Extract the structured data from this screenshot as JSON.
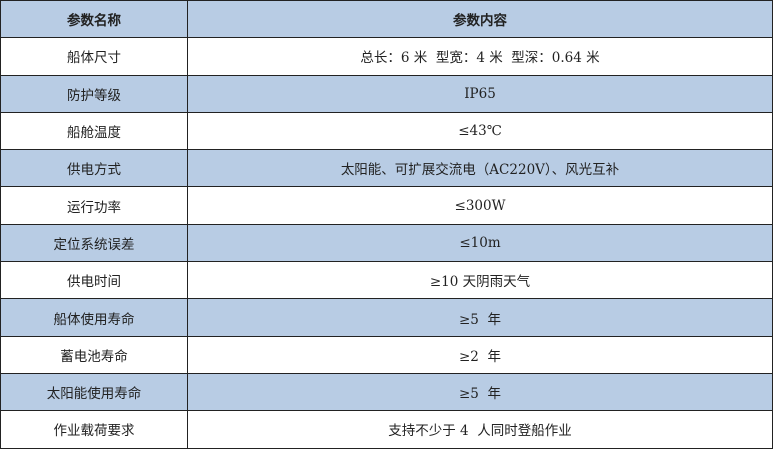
{
  "header": {
    "col1": "参数名称",
    "col2": "参数内容"
  },
  "colors": {
    "shaded_row": "#b8cce4",
    "border": "#222222"
  },
  "rows": [
    {
      "name": "船体尺寸",
      "value": "总长：6 米  型宽：4 米  型深：0.64 米"
    },
    {
      "name": "防护等级",
      "value": "IP65"
    },
    {
      "name": "船舱温度",
      "value": "≤43℃"
    },
    {
      "name": "供电方式",
      "value": "太阳能、可扩展交流电（AC220V）、风光互补"
    },
    {
      "name": "运行功率",
      "value": "≤300W"
    },
    {
      "name": "定位系统误差",
      "value": "≤10m"
    },
    {
      "name": "供电时间",
      "value": "≥10 天阴雨天气"
    },
    {
      "name": "船体使用寿命",
      "value": "≥5  年"
    },
    {
      "name": "蓄电池寿命",
      "value": "≥2  年"
    },
    {
      "name": "太阳能使用寿命",
      "value": "≥5  年"
    },
    {
      "name": "作业载荷要求",
      "value": "支持不少于 4  人同时登船作业"
    }
  ]
}
